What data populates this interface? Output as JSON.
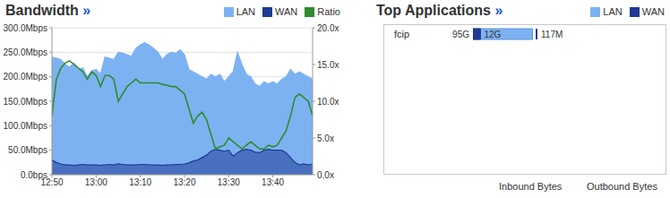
{
  "chart_data": [
    {
      "type": "area",
      "title": "Bandwidth »",
      "legend": "top right",
      "grid": true,
      "stacked": false,
      "x": [
        770,
        771,
        772,
        773,
        774,
        775,
        776,
        777,
        778,
        779,
        780,
        781,
        782,
        783,
        784,
        785,
        786,
        787,
        788,
        789,
        790,
        791,
        792,
        793,
        794,
        795,
        796,
        797,
        798,
        799,
        800,
        801,
        802,
        803,
        804,
        805,
        806,
        807,
        808,
        809,
        810,
        811,
        812,
        813,
        814,
        815,
        816,
        817,
        818,
        819,
        820,
        821,
        822,
        823,
        824,
        825,
        826,
        827,
        828,
        829
      ],
      "xlim": [
        770,
        829
      ],
      "xticks": [
        {
          "value": 770,
          "label": "12:50"
        },
        {
          "value": 780,
          "label": "13:00"
        },
        {
          "value": 790,
          "label": "13:10"
        },
        {
          "value": 800,
          "label": "13:20"
        },
        {
          "value": 810,
          "label": "13:30"
        },
        {
          "value": 820,
          "label": "13:40"
        }
      ],
      "ylim": [
        0,
        300
      ],
      "yticks": [
        {
          "value": 0,
          "label": "0.0bps"
        },
        {
          "value": 50,
          "label": "50.0Mbps"
        },
        {
          "value": 100,
          "label": "100.0Mbps"
        },
        {
          "value": 150,
          "label": "150.0Mbps"
        },
        {
          "value": 200,
          "label": "200.0Mbps"
        },
        {
          "value": 250,
          "label": "250.0Mbps"
        },
        {
          "value": 300,
          "label": "300.0Mbps"
        }
      ],
      "y2lim": [
        0,
        20
      ],
      "y2ticks": [
        {
          "value": 0,
          "label": "0.0x"
        },
        {
          "value": 5,
          "label": "5.0x"
        },
        {
          "value": 10,
          "label": "10.0x"
        },
        {
          "value": 15,
          "label": "15.0x"
        },
        {
          "value": 20,
          "label": "20.0x"
        }
      ],
      "series": [
        {
          "name": "LAN",
          "type": "area",
          "color": "#7db2f2",
          "values": [
            240,
            238,
            235,
            225,
            220,
            228,
            215,
            218,
            200,
            212,
            215,
            205,
            240,
            238,
            235,
            250,
            248,
            245,
            242,
            258,
            265,
            270,
            265,
            258,
            250,
            235,
            245,
            250,
            248,
            255,
            245,
            215,
            210,
            205,
            200,
            195,
            205,
            200,
            205,
            190,
            200,
            210,
            250,
            225,
            205,
            200,
            185,
            180,
            190,
            185,
            190,
            185,
            195,
            200,
            215,
            205,
            210,
            205,
            200,
            195
          ]
        },
        {
          "name": "WAN",
          "type": "area",
          "color": "#1f3a93",
          "values": [
            30,
            25,
            22,
            20,
            20,
            19,
            20,
            21,
            20,
            20,
            20,
            19,
            20,
            21,
            20,
            22,
            21,
            20,
            20,
            20,
            21,
            21,
            20,
            20,
            20,
            19,
            20,
            20,
            21,
            21,
            22,
            24,
            28,
            30,
            35,
            40,
            48,
            52,
            50,
            48,
            50,
            38,
            45,
            50,
            52,
            50,
            46,
            45,
            50,
            52,
            50,
            50,
            50,
            45,
            35,
            25,
            20,
            22,
            20,
            22
          ]
        },
        {
          "name": "Ratio",
          "type": "line",
          "axis": "y2",
          "color": "#2e8b2e",
          "values": [
            8,
            13,
            14.5,
            15.2,
            15.5,
            15,
            14.5,
            14,
            13,
            14,
            13.5,
            12,
            13.5,
            13.5,
            13,
            10,
            11,
            12,
            12.5,
            13,
            12.5,
            12.5,
            12.5,
            12.5,
            12.5,
            12.3,
            12.2,
            12,
            12,
            11.5,
            11,
            9,
            7,
            8,
            8.5,
            7.5,
            5.5,
            3.5,
            3.8,
            4,
            5,
            4.5,
            4,
            3.5,
            4,
            4.5,
            4,
            3.5,
            3.5,
            4,
            3.8,
            4,
            5,
            6,
            8,
            10.5,
            11,
            10.5,
            10,
            8
          ]
        }
      ]
    },
    {
      "type": "bar",
      "title": "Top Applications »",
      "orientation": "horizontal",
      "legend": "top right",
      "data_labels": true,
      "tick_labels": "y",
      "categories": [
        "fcip"
      ],
      "xlabel": [
        "Inbound Bytes",
        "Outbound Bytes"
      ],
      "xlim": [
        0,
        100000000000
      ],
      "series": [
        {
          "name": "LAN",
          "color": "#7db2f2",
          "values": [
            95000000000
          ],
          "value_labels": [
            "95G"
          ]
        },
        {
          "name": "WAN",
          "color": "#1f3a93",
          "values": [
            12000000000
          ],
          "value_labels": [
            "12G"
          ]
        }
      ],
      "outbound": {
        "color": "#1f3a93",
        "values": [
          117000000
        ],
        "value_labels": [
          "117M"
        ]
      }
    }
  ]
}
